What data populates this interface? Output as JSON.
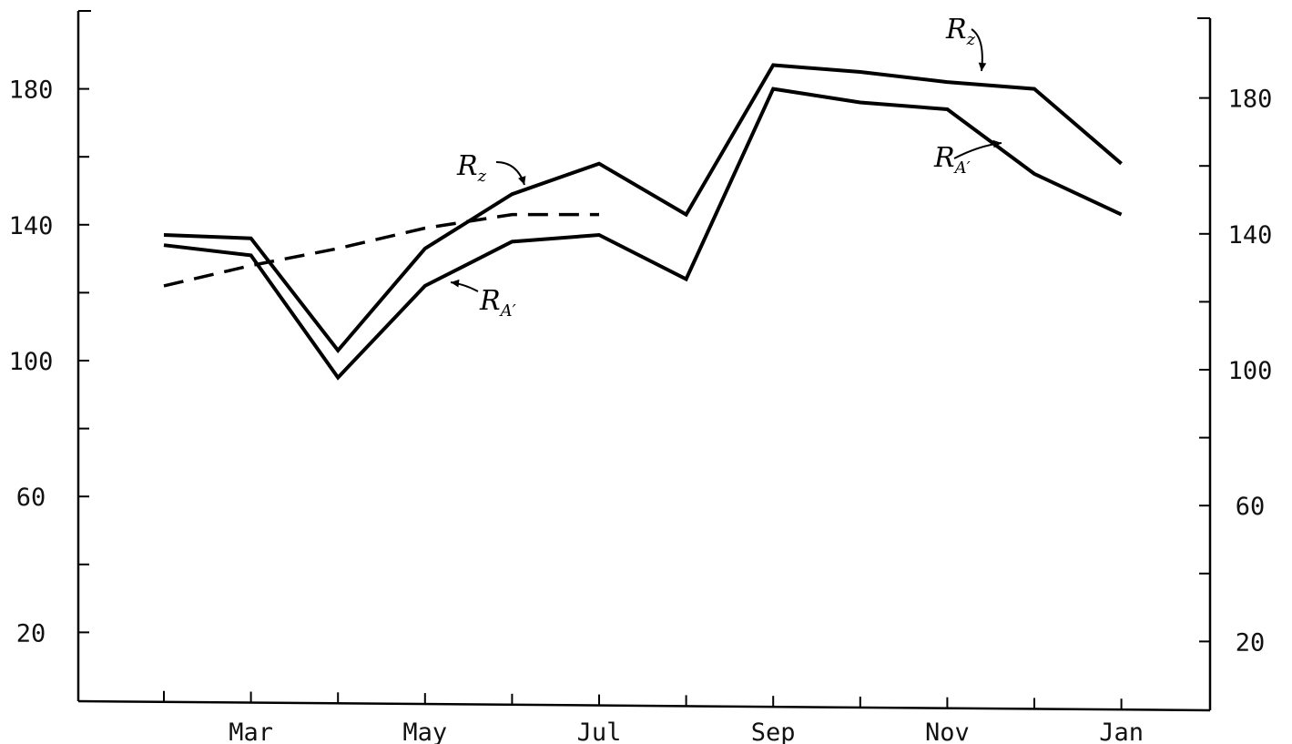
{
  "chart_data": {
    "type": "line",
    "title": "",
    "xlabel": "",
    "ylabel": "",
    "x_months": [
      "Feb",
      "Mar",
      "Apr",
      "May",
      "Jun",
      "Jul",
      "Aug",
      "Sep",
      "Oct",
      "Nov",
      "Dec",
      "Jan"
    ],
    "x_tick_labels": [
      "Mar",
      "May",
      "Jul",
      "Sep",
      "Nov",
      "Jan"
    ],
    "y_ticks_labeled": [
      20,
      60,
      100,
      140,
      180
    ],
    "ylim": [
      0,
      200
    ],
    "grid": false,
    "series": [
      {
        "key": "rz",
        "annotation": "R",
        "annotation_sub": "z",
        "style": "solid",
        "x": [
          "Feb",
          "Mar",
          "Apr",
          "May",
          "Jun",
          "Jul",
          "Aug",
          "Sep",
          "Oct",
          "Nov",
          "Dec",
          "Jan"
        ],
        "values": [
          137,
          136,
          103,
          133,
          149,
          158,
          143,
          187,
          185,
          182,
          180,
          158
        ]
      },
      {
        "key": "ra",
        "annotation": "R",
        "annotation_sub": "A′",
        "style": "solid",
        "x": [
          "Feb",
          "Mar",
          "Apr",
          "May",
          "Jun",
          "Jul",
          "Aug",
          "Sep",
          "Oct",
          "Nov",
          "Dec",
          "Jan"
        ],
        "values": [
          134,
          131,
          95,
          122,
          135,
          137,
          124,
          180,
          176,
          174,
          155,
          143
        ]
      },
      {
        "key": "trend",
        "style": "dashed",
        "x": [
          "Feb",
          "Mar",
          "Apr",
          "May",
          "Jun",
          "Jul"
        ],
        "values": [
          122,
          128,
          133,
          139,
          143,
          143
        ]
      }
    ],
    "annotations": [
      {
        "series": "rz",
        "text": "R",
        "sub": "z"
      },
      {
        "series": "ra",
        "text": "R",
        "sub": "A′"
      },
      {
        "series": "rz",
        "text": "R",
        "sub": "z"
      },
      {
        "series": "ra",
        "text": "R",
        "sub": "A′"
      }
    ]
  }
}
